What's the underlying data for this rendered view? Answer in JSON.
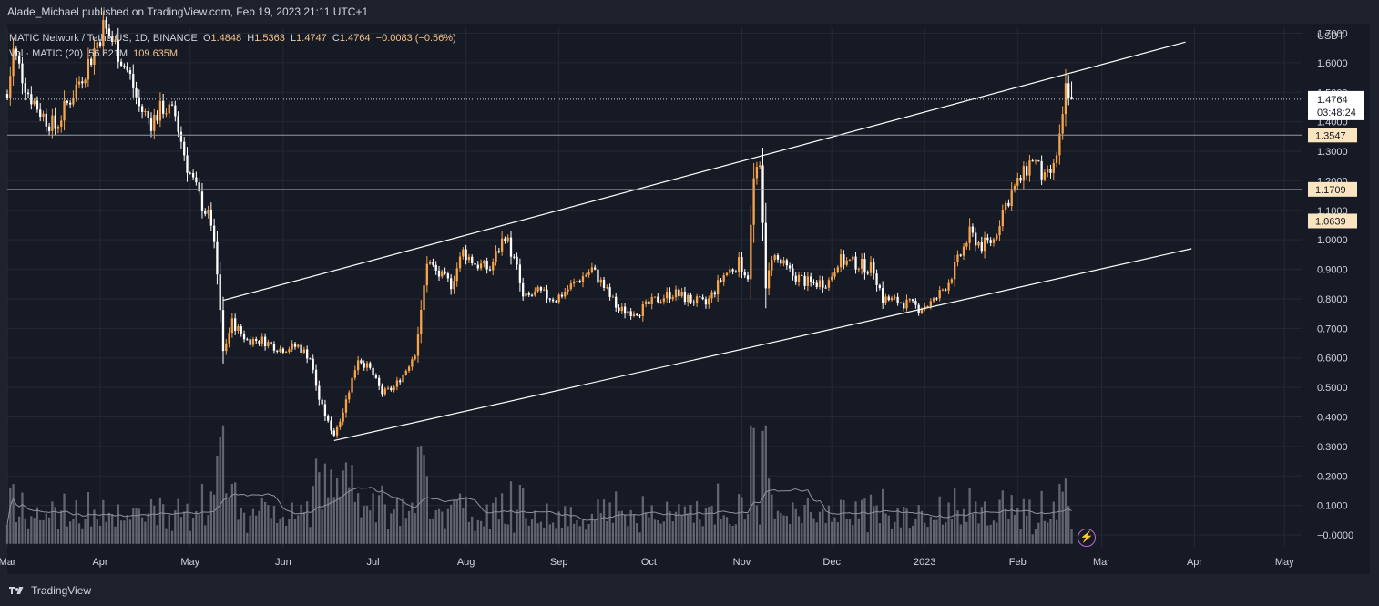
{
  "header": {
    "publisher_line": "Alade_Michael published on TradingView.com, Feb 19, 2023 21:11 UTC+1"
  },
  "legend": {
    "symbol": "MATIC Network / TetherUS, 1D, BINANCE",
    "open_label": "O",
    "open": "1.4848",
    "high_label": "H",
    "high": "1.5363",
    "low_label": "L",
    "low": "1.4747",
    "close_label": "C",
    "close": "1.4764",
    "change": "−0.0083 (−0.56%)",
    "vol_label": "Vol · MATIC (20)",
    "vol_ma": "56.821M",
    "vol_value": "109.635M"
  },
  "axis": {
    "currency": "USDT"
  },
  "price_tag": {
    "price": "1.4764",
    "countdown": "03:48:24"
  },
  "footer": {
    "brand": "TradingView"
  },
  "colors": {
    "background": "#161a25",
    "up": "#f7a34a",
    "down": "#ffffff",
    "line": "#ffffff",
    "volume": "#8a8d96",
    "grid": "#242833"
  },
  "chart_data": {
    "type": "candlestick",
    "y_axis": {
      "min": -0.04,
      "max": 1.72,
      "scale": "linear",
      "ticks": [
        "1.7000",
        "1.6000",
        "1.5000",
        "1.4000",
        "1.3000",
        "1.2000",
        "1.1000",
        "1.0000",
        "0.9000",
        "0.8000",
        "0.7000",
        "0.6000",
        "0.5000",
        "0.4000",
        "0.3000",
        "0.2000",
        "0.1000",
        "−0.0000"
      ],
      "tick_values": [
        1.7,
        1.6,
        1.5,
        1.4,
        1.3,
        1.2,
        1.1,
        1.0,
        0.9,
        0.8,
        0.7,
        0.6,
        0.5,
        0.4,
        0.3,
        0.2,
        0.1,
        0.0
      ]
    },
    "x_axis": {
      "start": "2022-03-01",
      "end": "2023-05-07",
      "ticks": [
        {
          "label": "Mar",
          "date": "2022-03-01"
        },
        {
          "label": "Apr",
          "date": "2022-04-01"
        },
        {
          "label": "May",
          "date": "2022-05-01"
        },
        {
          "label": "Jun",
          "date": "2022-06-01"
        },
        {
          "label": "Jul",
          "date": "2022-07-01"
        },
        {
          "label": "Aug",
          "date": "2022-08-01"
        },
        {
          "label": "Sep",
          "date": "2022-09-01"
        },
        {
          "label": "Oct",
          "date": "2022-10-01"
        },
        {
          "label": "Nov",
          "date": "2022-11-01"
        },
        {
          "label": "Dec",
          "date": "2022-12-01"
        },
        {
          "label": "2023",
          "date": "2023-01-01"
        },
        {
          "label": "Feb",
          "date": "2023-02-01"
        },
        {
          "label": "Mar",
          "date": "2023-03-01"
        },
        {
          "label": "Apr",
          "date": "2023-04-01"
        },
        {
          "label": "May",
          "date": "2023-05-01"
        }
      ]
    },
    "price_path": [
      {
        "date": "2022-03-01",
        "close": 1.48
      },
      {
        "date": "2022-03-03",
        "close": 1.64
      },
      {
        "date": "2022-03-08",
        "close": 1.5
      },
      {
        "date": "2022-03-13",
        "close": 1.42
      },
      {
        "date": "2022-03-17",
        "close": 1.38
      },
      {
        "date": "2022-03-22",
        "close": 1.48
      },
      {
        "date": "2022-03-29",
        "close": 1.62
      },
      {
        "date": "2022-04-02",
        "close": 1.72
      },
      {
        "date": "2022-04-06",
        "close": 1.66
      },
      {
        "date": "2022-04-11",
        "close": 1.55
      },
      {
        "date": "2022-04-14",
        "close": 1.45
      },
      {
        "date": "2022-04-18",
        "close": 1.4
      },
      {
        "date": "2022-04-22",
        "close": 1.45
      },
      {
        "date": "2022-04-26",
        "close": 1.42
      },
      {
        "date": "2022-04-30",
        "close": 1.25
      },
      {
        "date": "2022-05-05",
        "close": 1.12
      },
      {
        "date": "2022-05-08",
        "close": 1.06
      },
      {
        "date": "2022-05-10",
        "close": 0.88
      },
      {
        "date": "2022-05-12",
        "close": 0.62
      },
      {
        "date": "2022-05-15",
        "close": 0.72
      },
      {
        "date": "2022-05-20",
        "close": 0.66
      },
      {
        "date": "2022-05-25",
        "close": 0.66
      },
      {
        "date": "2022-05-31",
        "close": 0.63
      },
      {
        "date": "2022-06-06",
        "close": 0.64
      },
      {
        "date": "2022-06-10",
        "close": 0.6
      },
      {
        "date": "2022-06-13",
        "close": 0.46
      },
      {
        "date": "2022-06-16",
        "close": 0.38
      },
      {
        "date": "2022-06-18",
        "close": 0.34
      },
      {
        "date": "2022-06-21",
        "close": 0.42
      },
      {
        "date": "2022-06-26",
        "close": 0.6
      },
      {
        "date": "2022-06-30",
        "close": 0.56
      },
      {
        "date": "2022-07-04",
        "close": 0.48
      },
      {
        "date": "2022-07-08",
        "close": 0.5
      },
      {
        "date": "2022-07-12",
        "close": 0.56
      },
      {
        "date": "2022-07-15",
        "close": 0.62
      },
      {
        "date": "2022-07-17",
        "close": 0.75
      },
      {
        "date": "2022-07-19",
        "close": 0.93
      },
      {
        "date": "2022-07-23",
        "close": 0.88
      },
      {
        "date": "2022-07-27",
        "close": 0.85
      },
      {
        "date": "2022-07-31",
        "close": 0.96
      },
      {
        "date": "2022-08-04",
        "close": 0.92
      },
      {
        "date": "2022-08-09",
        "close": 0.9
      },
      {
        "date": "2022-08-14",
        "close": 1.02
      },
      {
        "date": "2022-08-18",
        "close": 0.9
      },
      {
        "date": "2022-08-20",
        "close": 0.8
      },
      {
        "date": "2022-08-25",
        "close": 0.82
      },
      {
        "date": "2022-08-31",
        "close": 0.8
      },
      {
        "date": "2022-09-07",
        "close": 0.86
      },
      {
        "date": "2022-09-12",
        "close": 0.9
      },
      {
        "date": "2022-09-16",
        "close": 0.84
      },
      {
        "date": "2022-09-21",
        "close": 0.76
      },
      {
        "date": "2022-09-28",
        "close": 0.76
      },
      {
        "date": "2022-10-04",
        "close": 0.8
      },
      {
        "date": "2022-10-09",
        "close": 0.82
      },
      {
        "date": "2022-10-14",
        "close": 0.8
      },
      {
        "date": "2022-10-20",
        "close": 0.78
      },
      {
        "date": "2022-10-26",
        "close": 0.88
      },
      {
        "date": "2022-10-31",
        "close": 0.92
      },
      {
        "date": "2022-11-03",
        "close": 0.88
      },
      {
        "date": "2022-11-05",
        "close": 1.2
      },
      {
        "date": "2022-11-07",
        "close": 1.24
      },
      {
        "date": "2022-11-08",
        "close": 1.08
      },
      {
        "date": "2022-11-09",
        "close": 0.82
      },
      {
        "date": "2022-11-11",
        "close": 0.95
      },
      {
        "date": "2022-11-14",
        "close": 0.92
      },
      {
        "date": "2022-11-18",
        "close": 0.88
      },
      {
        "date": "2022-11-24",
        "close": 0.85
      },
      {
        "date": "2022-11-30",
        "close": 0.86
      },
      {
        "date": "2022-12-03",
        "close": 0.93
      },
      {
        "date": "2022-12-09",
        "close": 0.92
      },
      {
        "date": "2022-12-15",
        "close": 0.9
      },
      {
        "date": "2022-12-18",
        "close": 0.8
      },
      {
        "date": "2022-12-24",
        "close": 0.79
      },
      {
        "date": "2022-12-30",
        "close": 0.77
      },
      {
        "date": "2023-01-04",
        "close": 0.79
      },
      {
        "date": "2023-01-09",
        "close": 0.86
      },
      {
        "date": "2023-01-13",
        "close": 0.95
      },
      {
        "date": "2023-01-16",
        "close": 1.02
      },
      {
        "date": "2023-01-20",
        "close": 0.98
      },
      {
        "date": "2023-01-24",
        "close": 1.0
      },
      {
        "date": "2023-01-27",
        "close": 1.1
      },
      {
        "date": "2023-01-30",
        "close": 1.16
      },
      {
        "date": "2023-02-03",
        "close": 1.22
      },
      {
        "date": "2023-02-06",
        "close": 1.28
      },
      {
        "date": "2023-02-10",
        "close": 1.2
      },
      {
        "date": "2023-02-13",
        "close": 1.24
      },
      {
        "date": "2023-02-16",
        "close": 1.4
      },
      {
        "date": "2023-02-17",
        "close": 1.5
      },
      {
        "date": "2023-02-18",
        "close": 1.48
      },
      {
        "date": "2023-02-19",
        "close": 1.4764
      }
    ],
    "volume_ma": "56.821M",
    "latest_volume": "109.635M",
    "channel_lines": [
      {
        "from": {
          "date": "2022-05-12",
          "price": 0.795
        },
        "to": {
          "date": "2023-02-19",
          "price": 1.57
        },
        "extend_to": {
          "date": "2023-03-29",
          "price": 1.67
        }
      },
      {
        "from": {
          "date": "2022-06-18",
          "price": 0.32
        },
        "to": {
          "date": "2023-03-31",
          "price": 0.97
        }
      }
    ],
    "horizontal_levels": [
      {
        "price": 1.3547,
        "label": "1.3547"
      },
      {
        "price": 1.1709,
        "label": "1.1709"
      },
      {
        "price": 1.0639,
        "label": "1.0639"
      }
    ],
    "last_price_line": 1.4764
  }
}
